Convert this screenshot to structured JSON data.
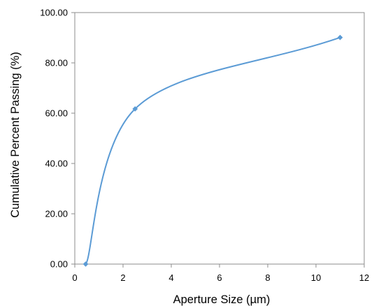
{
  "chart_data": {
    "type": "scatter",
    "title": "",
    "xlabel": "Aperture Size (µm)",
    "ylabel": "Cumulative Percent Passing (%)",
    "xlim": [
      0,
      12
    ],
    "ylim": [
      0,
      100
    ],
    "x_ticks": [
      0,
      2,
      4,
      6,
      8,
      10,
      12
    ],
    "x_tick_labels": [
      "0",
      "2",
      "4",
      "6",
      "8",
      "10",
      "12"
    ],
    "y_ticks": [
      0,
      20,
      40,
      60,
      80,
      100
    ],
    "y_tick_labels": [
      "0.00",
      "20.00",
      "40.00",
      "60.00",
      "80.00",
      "100.00"
    ],
    "grid": false,
    "legend": "none",
    "line_style": "smoothed line with markers",
    "series": [
      {
        "color": "#5b9bd5",
        "points": [
          {
            "x": 0.45,
            "y": 0.0
          },
          {
            "x": 2.5,
            "y": 61.7
          },
          {
            "x": 11.0,
            "y": 90.1
          }
        ]
      }
    ]
  }
}
